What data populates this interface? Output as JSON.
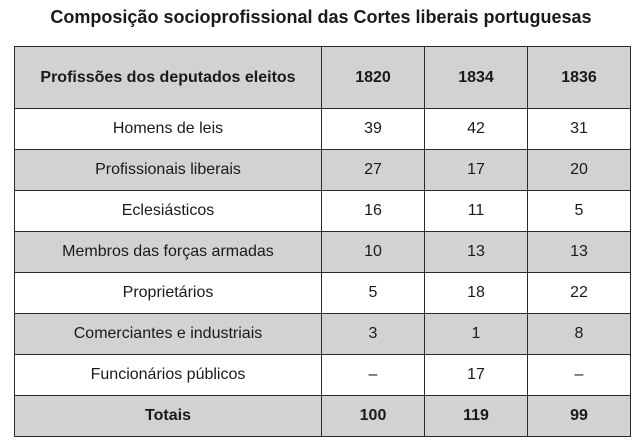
{
  "title": "Composição socioprofissional das Cortes liberais portuguesas",
  "table": {
    "headers": [
      "Profissões dos deputados eleitos",
      "1820",
      "1834",
      "1836"
    ],
    "rows": [
      {
        "profession": "Homens de leis",
        "y1820": "39",
        "y1834": "42",
        "y1836": "31"
      },
      {
        "profession": "Profissionais liberais",
        "y1820": "27",
        "y1834": "17",
        "y1836": "20"
      },
      {
        "profession": "Eclesiásticos",
        "y1820": "16",
        "y1834": "11",
        "y1836": "5"
      },
      {
        "profession": "Membros das forças armadas",
        "y1820": "10",
        "y1834": "13",
        "y1836": "13"
      },
      {
        "profession": "Proprietários",
        "y1820": "5",
        "y1834": "18",
        "y1836": "22"
      },
      {
        "profession": "Comerciantes e industriais",
        "y1820": "3",
        "y1834": "1",
        "y1836": "8"
      },
      {
        "profession": "Funcionários públicos",
        "y1820": "–",
        "y1834": "17",
        "y1836": "–"
      }
    ],
    "totals": {
      "label": "Totais",
      "y1820": "100",
      "y1834": "119",
      "y1836": "99"
    }
  }
}
